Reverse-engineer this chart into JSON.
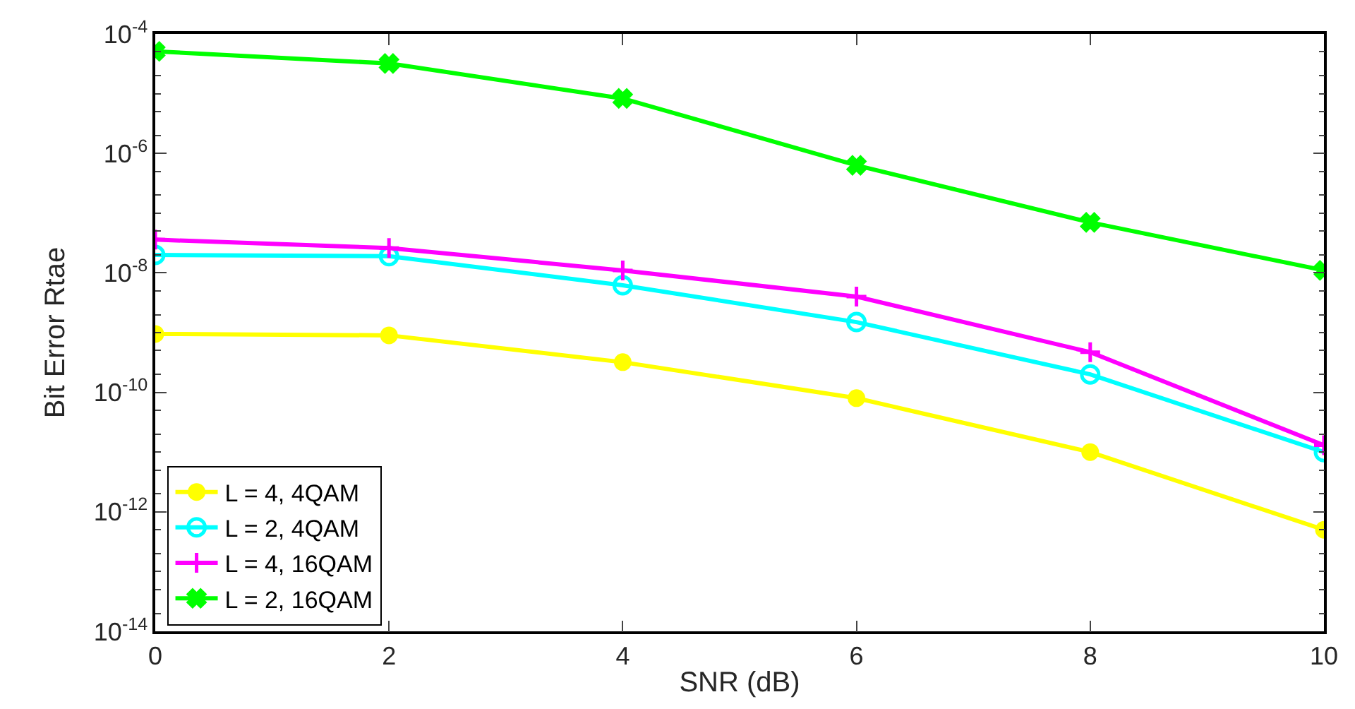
{
  "chart_data": {
    "type": "line",
    "xlabel": "SNR (dB)",
    "ylabel": "Bit Error Rtae",
    "x": [
      0,
      2,
      4,
      6,
      8,
      10
    ],
    "series": [
      {
        "name": "L = 4, 4QAM",
        "color": "#ffff00",
        "marker": "circle",
        "values": [
          9.5e-10,
          9e-10,
          3.2e-10,
          8e-11,
          1e-11,
          5e-13
        ]
      },
      {
        "name": "L = 2, 4QAM",
        "color": "#00ffff",
        "marker": "circle-open",
        "values": [
          2e-08,
          1.9e-08,
          6.2e-09,
          1.5e-09,
          2e-10,
          1e-11
        ]
      },
      {
        "name": "L = 4, 16QAM",
        "color": "#ff00ff",
        "marker": "plus",
        "values": [
          3.6e-08,
          2.6e-08,
          1.1e-08,
          4e-09,
          4.7e-10,
          1.3e-11
        ]
      },
      {
        "name": "L = 2, 16QAM",
        "color": "#00ff00",
        "marker": "cross",
        "values": [
          5.1e-05,
          3.2e-05,
          8.3e-06,
          6.3e-07,
          7e-08,
          1.1e-08
        ]
      }
    ],
    "log": "y",
    "legend": "bottom left",
    "line_style": "solid",
    "xlim": [
      0,
      10
    ],
    "xticks": [
      0,
      2,
      4,
      6,
      8,
      10
    ],
    "ylim": [
      1e-14,
      0.0001
    ],
    "yticks": [
      {
        "value": 1e-14,
        "label": "10$^{-14}$"
      },
      {
        "value": 1e-12,
        "label": "10$^{-12}$"
      },
      {
        "value": 1e-10,
        "label": "10$^{-10}$"
      },
      {
        "value": 1e-08,
        "label": "10$^{-8}$"
      },
      {
        "value": 1e-06,
        "label": "10$^{-6}$"
      },
      {
        "value": 0.0001,
        "label": "10$^{-4}$"
      }
    ]
  }
}
